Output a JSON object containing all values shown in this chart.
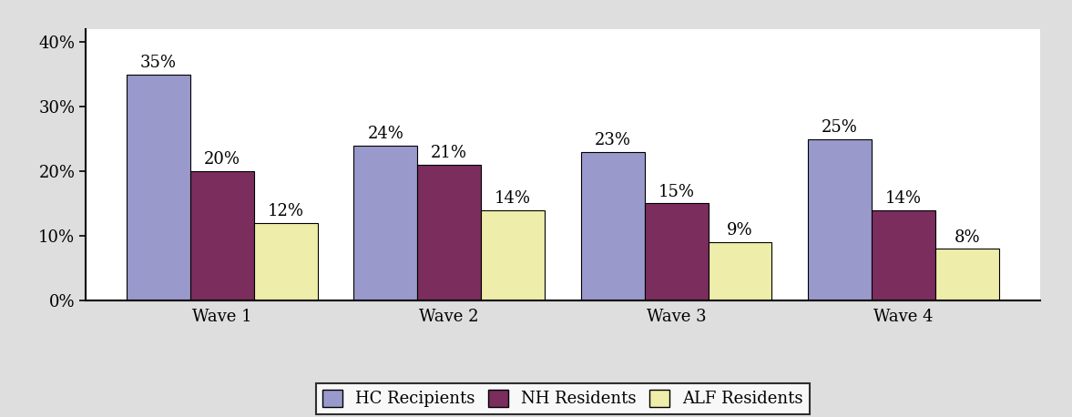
{
  "categories": [
    "Wave 1",
    "Wave 2",
    "Wave 3",
    "Wave 4"
  ],
  "series": {
    "HC Recipients": [
      35,
      24,
      23,
      25
    ],
    "NH Residents": [
      20,
      21,
      15,
      14
    ],
    "ALF Residents": [
      12,
      14,
      9,
      8
    ]
  },
  "colors": {
    "HC Recipients": "#9999CC",
    "NH Residents": "#7B2D5E",
    "ALF Residents": "#EEEEAA"
  },
  "ylim": [
    0,
    42
  ],
  "yticks": [
    0,
    10,
    20,
    30,
    40
  ],
  "yticklabels": [
    "0%",
    "10%",
    "20%",
    "30%",
    "40%"
  ],
  "bar_width": 0.28,
  "tick_fontsize": 13,
  "legend_fontsize": 13,
  "annotation_fontsize": 13,
  "background_color": "#FFFFFF",
  "bar_edge_color": "#000000",
  "figure_bg": "#DEDEDE"
}
